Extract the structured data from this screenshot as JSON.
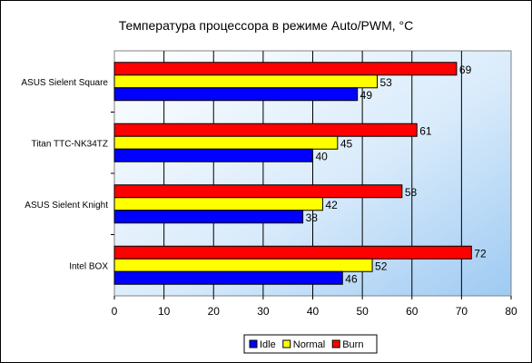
{
  "chart_data": {
    "type": "bar",
    "orientation": "horizontal",
    "title": "Температура процессора в режиме Auto/PWM, °C",
    "categories": [
      "ASUS Sielent Square",
      "Titan TTC-NK34TZ",
      "ASUS Sielent Knight",
      "Intel BOX"
    ],
    "series": [
      {
        "name": "Idle",
        "color": "#0000ff",
        "values": [
          49,
          40,
          38,
          46
        ]
      },
      {
        "name": "Normal",
        "color": "#ffff00",
        "values": [
          53,
          45,
          42,
          52
        ]
      },
      {
        "name": "Burn",
        "color": "#ff0000",
        "values": [
          69,
          61,
          58,
          72
        ]
      }
    ],
    "xlim": [
      0,
      80
    ],
    "xticks": [
      0,
      10,
      20,
      30,
      40,
      50,
      60,
      70,
      80
    ],
    "grid": true,
    "legend_position": "bottom",
    "plot_background": "gradient white to light blue"
  }
}
